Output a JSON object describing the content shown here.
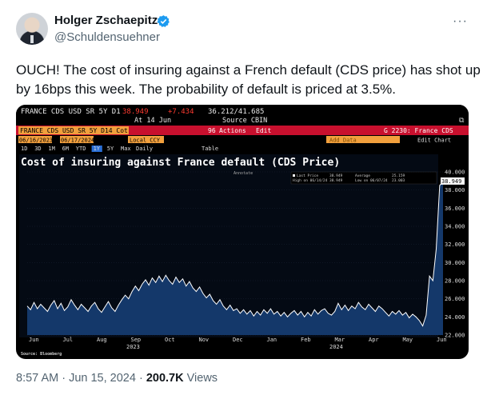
{
  "author": {
    "name": "Holger Zschaepitz",
    "handle": "@Schuldensuehner"
  },
  "more_label": "···",
  "tweet_text": "OUCH! The cost of insuring against a French default (CDS price) has shot up by 16bps this week. The probability of default is priced at 3.5%.",
  "terminal": {
    "ticker": "FRANCE CDS USD SR 5Y D1",
    "last_value": "38.949",
    "change": "+7.434",
    "range": "36.212/41.685",
    "date_label": "At 14 Jun",
    "source": "Source CBIN",
    "toolbar_ticker": "FRANCE CDS USD SR 5Y D14 Cot",
    "actions_label": "Actions",
    "edit_label": "Edit",
    "function_label": "G 2230: France CDS",
    "date_from": "06/16/2023",
    "date_to": "06/17/2024",
    "currency": "Local CCY",
    "periods": [
      "1D",
      "3D",
      "1M",
      "6M",
      "YTD",
      "1Y",
      "5Y",
      "Max"
    ],
    "active_period": "1Y",
    "frequency": "Daily",
    "table_label": "Table",
    "add_data_label": "Add Data",
    "edit_chart_label": "Edit Chart",
    "annotations_label": "Annotate",
    "source_note": "Source: Bloomberg"
  },
  "chart_data": {
    "type": "line",
    "title": "Cost of insuring against France default (CDS Price)",
    "legend": [
      {
        "label": "Last Price",
        "value": "38.949"
      },
      {
        "label": "Average",
        "value": "25.159"
      },
      {
        "label": "High on 06/14/24",
        "value": "38.949"
      },
      {
        "label": "Low on 06/07/24",
        "value": "23.003"
      }
    ],
    "ylim": [
      22,
      40
    ],
    "yticks": [
      "40.000",
      "38.000",
      "36.000",
      "34.000",
      "32.000",
      "30.000",
      "28.000",
      "26.000",
      "24.000",
      "22.000"
    ],
    "last_value_label": "38.949",
    "x_month_labels": [
      "Jun",
      "Jul",
      "Aug",
      "Sep",
      "Oct",
      "Nov",
      "Dec",
      "Jan",
      "Feb",
      "Mar",
      "Apr",
      "May",
      "Jun"
    ],
    "x_year_labels": [
      "2023",
      "2024"
    ],
    "line_color": "#ffffff",
    "fill_color": "#14386a",
    "series": [
      {
        "values": [
          25.2,
          24.8,
          25.6,
          24.9,
          25.4,
          25.0,
          24.6,
          25.3,
          25.8,
          24.9,
          25.5,
          24.7,
          25.1,
          25.9,
          25.3,
          24.8,
          25.4,
          25.0,
          24.6,
          25.2,
          25.6,
          24.9,
          24.5,
          25.1,
          25.7,
          25.0,
          24.6,
          25.3,
          25.9,
          26.4,
          26.0,
          26.8,
          27.4,
          26.9,
          27.6,
          28.1,
          27.5,
          28.3,
          27.8,
          28.5,
          27.9,
          28.6,
          28.0,
          27.6,
          28.4,
          27.8,
          28.2,
          27.4,
          27.9,
          27.2,
          26.8,
          27.3,
          26.6,
          26.1,
          26.5,
          25.8,
          25.4,
          25.9,
          25.2,
          24.8,
          25.3,
          24.7,
          24.9,
          24.4,
          24.8,
          24.3,
          24.7,
          24.1,
          24.6,
          24.2,
          24.8,
          24.4,
          24.9,
          24.3,
          24.6,
          24.1,
          24.5,
          24.0,
          24.4,
          24.7,
          24.2,
          24.6,
          24.0,
          24.5,
          24.1,
          24.8,
          24.3,
          24.7,
          24.9,
          24.4,
          24.2,
          24.6,
          25.5,
          24.8,
          25.3,
          24.7,
          25.2,
          24.9,
          25.6,
          25.1,
          24.8,
          25.4,
          25.0,
          24.6,
          25.2,
          24.9,
          24.5,
          24.1,
          24.6,
          24.3,
          24.7,
          24.2,
          24.5,
          23.9,
          24.3,
          24.0,
          23.6,
          23.0,
          24.2,
          28.5,
          28.0,
          31.5,
          38.5,
          38.949
        ]
      }
    ]
  }
}
